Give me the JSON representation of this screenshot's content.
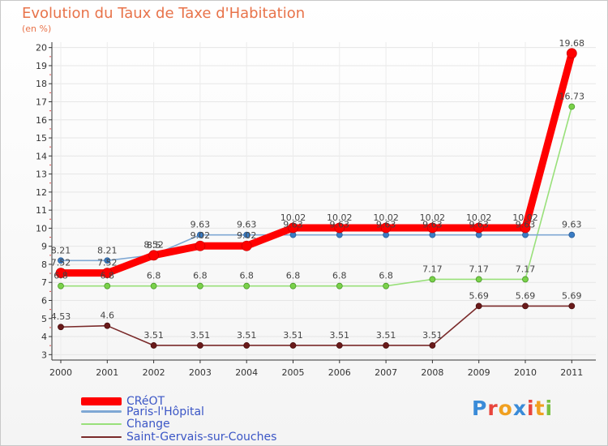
{
  "chart_data": {
    "type": "line",
    "title": "Evolution du Taux de Taxe d'Habitation",
    "unit_label": "(en %)",
    "xlabel": "",
    "ylabel": "",
    "ylim": [
      2.7,
      20.3
    ],
    "y_ticks": [
      3,
      4,
      5,
      6,
      7,
      8,
      9,
      10,
      11,
      12,
      13,
      14,
      15,
      16,
      17,
      18,
      19,
      20
    ],
    "categories": [
      "2000",
      "2001",
      "2002",
      "2003",
      "2004",
      "2005",
      "2006",
      "2007",
      "2008",
      "2009",
      "2010",
      "2011"
    ],
    "series": [
      {
        "name": "Saint-Gervais-sur-Couches",
        "color": "#7a2a2a",
        "values": [
          4.53,
          4.6,
          3.51,
          3.51,
          3.51,
          3.51,
          3.51,
          3.51,
          3.51,
          5.69,
          5.69,
          5.69
        ],
        "labels": [
          "4.53",
          "4.6",
          "3.51",
          "3.51",
          "3.51",
          "3.51",
          "3.51",
          "3.51",
          "3.51",
          "5.69",
          "5.69",
          "5.69"
        ]
      },
      {
        "name": "Change",
        "color": "#99e07a",
        "values": [
          6.8,
          6.8,
          6.8,
          6.8,
          6.8,
          6.8,
          6.8,
          6.8,
          7.17,
          7.17,
          7.17,
          16.73
        ],
        "labels": [
          "6.8",
          "6.8",
          "6.8",
          "6.8",
          "6.8",
          "6.8",
          "6.8",
          "6.8",
          "7.17",
          "7.17",
          "7.17",
          "16.73"
        ]
      },
      {
        "name": "Paris-l'Hôpital",
        "color": "#7fa8d4",
        "values": [
          8.21,
          8.21,
          8.52,
          9.63,
          9.63,
          9.63,
          9.63,
          9.63,
          9.63,
          9.63,
          9.63,
          9.63
        ],
        "labels": [
          "8.21",
          "8.21",
          "8.52",
          "9.63",
          "9.63",
          "9.63",
          "9.63",
          "9.63",
          "9.63",
          "9.63",
          "9.63",
          "9.63"
        ]
      },
      {
        "name": "CRéOT",
        "color": "#ff0000",
        "values": [
          7.52,
          7.52,
          8.5,
          9.02,
          9.02,
          10.02,
          10.02,
          10.02,
          10.02,
          10.02,
          10.02,
          19.68
        ],
        "labels": [
          "7.52",
          "7.52",
          "8.5",
          "9.02",
          "9.02",
          "10.02",
          "10.02",
          "10.02",
          "10.02",
          "10.02",
          "10.02",
          "19.68"
        ]
      }
    ],
    "legend_order": [
      "CRéOT",
      "Paris-l'Hôpital",
      "Change",
      "Saint-Gervais-sur-Couches"
    ],
    "legend_position": "bottom-left"
  },
  "logo": {
    "letters": [
      "P",
      "r",
      "o",
      "x",
      "i",
      "t",
      "i"
    ],
    "colors": [
      "#3a8bd8",
      "#e8453c",
      "#f0a020",
      "#3a8bd8",
      "#e8453c",
      "#f0a020",
      "#7ac143"
    ]
  }
}
